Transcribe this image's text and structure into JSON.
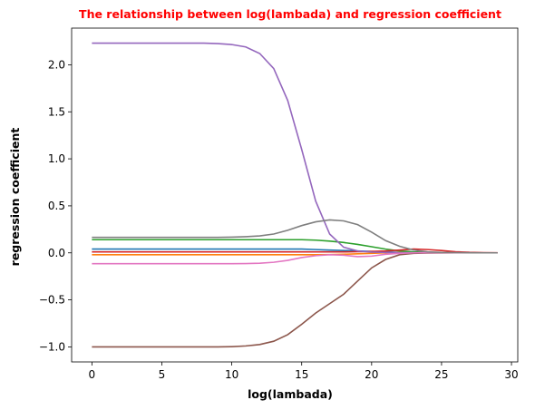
{
  "chart_data": {
    "type": "line",
    "title": "The relationship between log(lambada) and regression coefficient",
    "title_color": "#ff0000",
    "xlabel": "log(lambada)",
    "ylabel": "regression coefficient",
    "xlim": [
      -1.45,
      30.45
    ],
    "ylim": [
      -1.16,
      2.39
    ],
    "xticks": [
      0,
      5,
      10,
      15,
      20,
      25,
      30
    ],
    "xtick_labels": [
      "0",
      "5",
      "10",
      "15",
      "20",
      "25",
      "30"
    ],
    "yticks": [
      -1.0,
      -0.5,
      0.0,
      0.5,
      1.0,
      1.5,
      2.0
    ],
    "ytick_labels": [
      "−1.0",
      "−0.5",
      "0.0",
      "0.5",
      "1.0",
      "1.5",
      "2.0"
    ],
    "grid": false,
    "x": [
      0,
      1,
      2,
      3,
      4,
      5,
      6,
      7,
      8,
      9,
      10,
      11,
      12,
      13,
      14,
      15,
      16,
      17,
      18,
      19,
      20,
      21,
      22,
      23,
      24,
      25,
      26,
      27,
      28,
      29
    ],
    "series": [
      {
        "color": "#1f77b4",
        "values": [
          0.04,
          0.04,
          0.04,
          0.04,
          0.04,
          0.04,
          0.04,
          0.04,
          0.04,
          0.04,
          0.04,
          0.04,
          0.04,
          0.04,
          0.04,
          0.04,
          0.035,
          0.03,
          0.025,
          0.02,
          0.015,
          0.01,
          0.005,
          0.003,
          0.002,
          0.001,
          0,
          0,
          0,
          0
        ]
      },
      {
        "color": "#ff7f0e",
        "values": [
          -0.02,
          -0.02,
          -0.02,
          -0.02,
          -0.02,
          -0.02,
          -0.02,
          -0.02,
          -0.02,
          -0.02,
          -0.02,
          -0.02,
          -0.02,
          -0.02,
          -0.02,
          -0.02,
          -0.02,
          -0.018,
          -0.015,
          -0.01,
          -0.005,
          0,
          0.005,
          0.005,
          0.004,
          0.002,
          0.001,
          0,
          0,
          0
        ]
      },
      {
        "color": "#2ca02c",
        "values": [
          0.14,
          0.14,
          0.14,
          0.14,
          0.14,
          0.14,
          0.14,
          0.14,
          0.14,
          0.14,
          0.14,
          0.14,
          0.14,
          0.14,
          0.14,
          0.14,
          0.135,
          0.125,
          0.11,
          0.09,
          0.065,
          0.04,
          0.02,
          0.01,
          0.005,
          0.002,
          0.001,
          0,
          0,
          0
        ]
      },
      {
        "color": "#d62728",
        "values": [
          0.01,
          0.01,
          0.01,
          0.01,
          0.01,
          0.01,
          0.01,
          0.01,
          0.01,
          0.01,
          0.01,
          0.01,
          0.01,
          0.01,
          0.01,
          0.01,
          0.01,
          0.01,
          0.01,
          0.012,
          0.015,
          0.02,
          0.03,
          0.04,
          0.035,
          0.025,
          0.012,
          0.005,
          0.002,
          0.001
        ]
      },
      {
        "color": "#9467bd",
        "values": [
          2.23,
          2.23,
          2.23,
          2.23,
          2.23,
          2.23,
          2.23,
          2.23,
          2.23,
          2.225,
          2.215,
          2.19,
          2.12,
          1.96,
          1.62,
          1.1,
          0.55,
          0.2,
          0.06,
          0.02,
          0.008,
          0.004,
          0.002,
          0.001,
          0,
          0,
          0,
          0,
          0,
          0
        ]
      },
      {
        "color": "#8c564b",
        "values": [
          -1.0,
          -1.0,
          -1.0,
          -1.0,
          -1.0,
          -1.0,
          -1.0,
          -1.0,
          -1.0,
          -1.0,
          -0.998,
          -0.99,
          -0.975,
          -0.94,
          -0.87,
          -0.76,
          -0.64,
          -0.54,
          -0.44,
          -0.3,
          -0.16,
          -0.07,
          -0.02,
          -0.005,
          -0.002,
          -0.001,
          0,
          0,
          0,
          0
        ]
      },
      {
        "color": "#e377c2",
        "values": [
          -0.115,
          -0.115,
          -0.115,
          -0.115,
          -0.115,
          -0.115,
          -0.115,
          -0.115,
          -0.115,
          -0.115,
          -0.115,
          -0.114,
          -0.11,
          -0.1,
          -0.08,
          -0.05,
          -0.03,
          -0.02,
          -0.025,
          -0.04,
          -0.035,
          -0.015,
          -0.005,
          0,
          0.002,
          0.002,
          0.001,
          0,
          0,
          0
        ]
      },
      {
        "color": "#7f7f7f",
        "values": [
          0.165,
          0.165,
          0.165,
          0.165,
          0.165,
          0.165,
          0.165,
          0.165,
          0.165,
          0.165,
          0.167,
          0.172,
          0.18,
          0.2,
          0.24,
          0.29,
          0.33,
          0.35,
          0.34,
          0.3,
          0.22,
          0.13,
          0.07,
          0.03,
          0.01,
          0.004,
          0.002,
          0.001,
          0,
          0
        ]
      }
    ]
  }
}
